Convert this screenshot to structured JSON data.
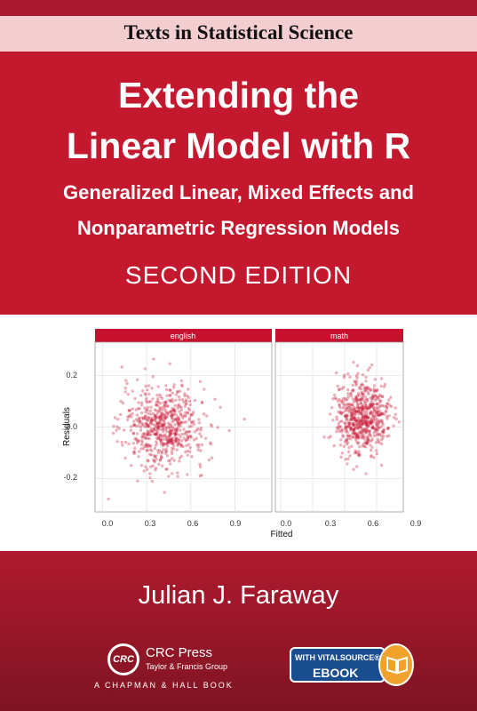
{
  "series": {
    "title": "Texts in Statistical Science"
  },
  "title": {
    "line1": "Extending the",
    "line2": "Linear Model with R"
  },
  "subtitle": {
    "line1": "Generalized Linear, Mixed Effects and",
    "line2": "Nonparametric Regression Models"
  },
  "edition": "SECOND EDITION",
  "author": "Julian J. Faraway",
  "publisher": {
    "logo_text": "CRC",
    "name": "CRC Press",
    "group": "Taylor & Francis Group",
    "book": "A CHAPMAN & HALL BOOK"
  },
  "badge": {
    "line1": "WITH VITALSOURCE®",
    "line2": "EBOOK",
    "icon": "open-book-icon"
  },
  "colors": {
    "band": "#a9182c",
    "strip": "#f3cdd0",
    "panel": "#c4182f",
    "point": "#c81d3a",
    "footer": "#9a1828",
    "badge": "#1a4d8f",
    "badge_accent": "#f0a22b"
  },
  "chart_data": [
    {
      "type": "scatter",
      "panel": "english",
      "xlabel": "Fitted",
      "ylabel": "Residuals",
      "xticks": [
        "0.0",
        "0.3",
        "0.6",
        "0.9"
      ],
      "yticks": [
        "0.2",
        "0.0",
        "-0.2"
      ],
      "xlim": [
        -0.05,
        1.15
      ],
      "ylim": [
        -0.33,
        0.33
      ],
      "grid": true,
      "cluster": {
        "center": [
          0.42,
          0.0
        ],
        "spread": [
          0.14,
          0.08
        ],
        "approx_points": 650
      }
    },
    {
      "type": "scatter",
      "panel": "math",
      "xlabel": "Fitted",
      "ylabel": "Residuals",
      "xticks": [
        "0.0",
        "0.3",
        "0.6",
        "0.9"
      ],
      "yticks": [
        "0.2",
        "0.0",
        "-0.2"
      ],
      "xlim": [
        -0.05,
        1.15
      ],
      "ylim": [
        -0.33,
        0.33
      ],
      "grid": true,
      "cluster": {
        "center": [
          0.76,
          0.04
        ],
        "spread": [
          0.12,
          0.07
        ],
        "approx_points": 650
      }
    }
  ]
}
